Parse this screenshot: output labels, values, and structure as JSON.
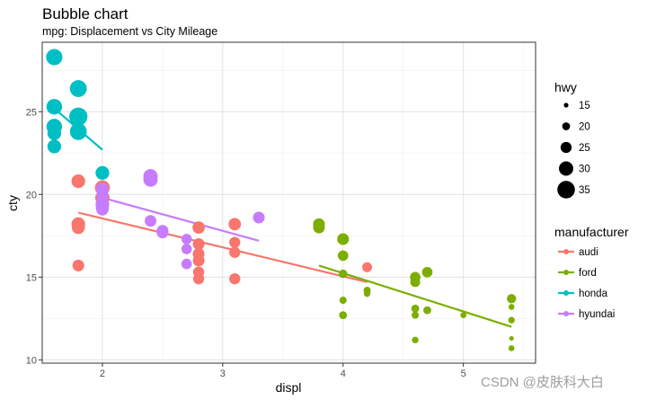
{
  "chart_data": {
    "type": "scatter",
    "title": "Bubble chart",
    "subtitle": "mpg: Displacement vs City Mileage",
    "xlabel": "displ",
    "ylabel": "cty",
    "xlim": [
      1.5,
      5.6
    ],
    "ylim": [
      9.8,
      29.2
    ],
    "x_ticks": [
      2,
      3,
      4,
      5
    ],
    "y_ticks": [
      10,
      15,
      20,
      25
    ],
    "grid": true,
    "legend_position": "right",
    "size_legend": {
      "title": "hwy",
      "values": [
        15,
        20,
        25,
        30,
        35
      ]
    },
    "color_legend": {
      "title": "manufacturer",
      "entries": [
        {
          "name": "audi",
          "color": "#F8766D"
        },
        {
          "name": "ford",
          "color": "#7CAE00"
        },
        {
          "name": "honda",
          "color": "#00BFC4"
        },
        {
          "name": "hyundai",
          "color": "#C77CFF"
        }
      ]
    },
    "series": [
      {
        "name": "audi",
        "color": "#F8766D",
        "points": [
          {
            "x": 1.8,
            "y": 18.2,
            "hwy": 29
          },
          {
            "x": 1.8,
            "y": 20.8,
            "hwy": 29
          },
          {
            "x": 1.8,
            "y": 18.0,
            "hwy": 28
          },
          {
            "x": 1.8,
            "y": 15.7,
            "hwy": 26
          },
          {
            "x": 2.0,
            "y": 20.4,
            "hwy": 31
          },
          {
            "x": 2.0,
            "y": 19.8,
            "hwy": 30
          },
          {
            "x": 2.8,
            "y": 16.0,
            "hwy": 26
          },
          {
            "x": 2.8,
            "y": 17.0,
            "hwy": 26
          },
          {
            "x": 2.8,
            "y": 15.3,
            "hwy": 25
          },
          {
            "x": 2.8,
            "y": 14.9,
            "hwy": 25
          },
          {
            "x": 2.8,
            "y": 18.0,
            "hwy": 27
          },
          {
            "x": 2.8,
            "y": 16.4,
            "hwy": 26
          },
          {
            "x": 3.1,
            "y": 18.2,
            "hwy": 27
          },
          {
            "x": 3.1,
            "y": 14.9,
            "hwy": 25
          },
          {
            "x": 3.1,
            "y": 16.5,
            "hwy": 25
          },
          {
            "x": 3.1,
            "y": 17.1,
            "hwy": 25
          },
          {
            "x": 4.2,
            "y": 15.6,
            "hwy": 23
          }
        ],
        "trend": {
          "x": [
            1.8,
            4.2
          ],
          "y": [
            18.9,
            14.7
          ]
        }
      },
      {
        "name": "ford",
        "color": "#7CAE00",
        "points": [
          {
            "x": 3.8,
            "y": 18.2,
            "hwy": 26
          },
          {
            "x": 3.8,
            "y": 18.0,
            "hwy": 26
          },
          {
            "x": 4.0,
            "y": 16.3,
            "hwy": 24
          },
          {
            "x": 4.0,
            "y": 15.2,
            "hwy": 21
          },
          {
            "x": 4.0,
            "y": 13.6,
            "hwy": 19
          },
          {
            "x": 4.0,
            "y": 12.7,
            "hwy": 20
          },
          {
            "x": 4.0,
            "y": 17.3,
            "hwy": 26
          },
          {
            "x": 4.2,
            "y": 14.2,
            "hwy": 19
          },
          {
            "x": 4.2,
            "y": 14.0,
            "hwy": 18
          },
          {
            "x": 4.6,
            "y": 14.7,
            "hwy": 23
          },
          {
            "x": 4.6,
            "y": 15.0,
            "hwy": 24
          },
          {
            "x": 4.6,
            "y": 13.1,
            "hwy": 20
          },
          {
            "x": 4.6,
            "y": 12.7,
            "hwy": 19
          },
          {
            "x": 4.6,
            "y": 11.2,
            "hwy": 18
          },
          {
            "x": 4.7,
            "y": 15.3,
            "hwy": 24
          },
          {
            "x": 4.7,
            "y": 13.0,
            "hwy": 20
          },
          {
            "x": 5.0,
            "y": 12.7,
            "hwy": 17
          },
          {
            "x": 5.4,
            "y": 13.7,
            "hwy": 22
          },
          {
            "x": 5.4,
            "y": 13.2,
            "hwy": 17
          },
          {
            "x": 5.4,
            "y": 12.4,
            "hwy": 18
          },
          {
            "x": 5.4,
            "y": 11.3,
            "hwy": 15
          },
          {
            "x": 5.4,
            "y": 10.7,
            "hwy": 17
          }
        ],
        "trend": {
          "x": [
            3.8,
            5.4
          ],
          "y": [
            15.7,
            12.0
          ]
        }
      },
      {
        "name": "honda",
        "color": "#00BFC4",
        "points": [
          {
            "x": 1.6,
            "y": 28.3,
            "hwy": 33
          },
          {
            "x": 1.6,
            "y": 25.3,
            "hwy": 32
          },
          {
            "x": 1.6,
            "y": 24.1,
            "hwy": 32
          },
          {
            "x": 1.6,
            "y": 23.7,
            "hwy": 29
          },
          {
            "x": 1.6,
            "y": 22.9,
            "hwy": 29
          },
          {
            "x": 1.8,
            "y": 26.4,
            "hwy": 34
          },
          {
            "x": 1.8,
            "y": 24.7,
            "hwy": 36
          },
          {
            "x": 1.8,
            "y": 23.8,
            "hwy": 34
          },
          {
            "x": 2.0,
            "y": 21.3,
            "hwy": 29
          }
        ],
        "trend": {
          "x": [
            1.6,
            2.0
          ],
          "y": [
            25.2,
            22.7
          ]
        }
      },
      {
        "name": "hyundai",
        "color": "#C77CFF",
        "points": [
          {
            "x": 2.0,
            "y": 19.9,
            "hwy": 26
          },
          {
            "x": 2.0,
            "y": 19.4,
            "hwy": 29
          },
          {
            "x": 2.0,
            "y": 19.2,
            "hwy": 28
          },
          {
            "x": 2.0,
            "y": 19.1,
            "hwy": 27
          },
          {
            "x": 2.0,
            "y": 20.3,
            "hwy": 28
          },
          {
            "x": 2.4,
            "y": 21.1,
            "hwy": 30
          },
          {
            "x": 2.4,
            "y": 20.9,
            "hwy": 30
          },
          {
            "x": 2.4,
            "y": 18.4,
            "hwy": 26
          },
          {
            "x": 2.5,
            "y": 17.7,
            "hwy": 26
          },
          {
            "x": 2.5,
            "y": 17.8,
            "hwy": 26
          },
          {
            "x": 2.7,
            "y": 16.7,
            "hwy": 24
          },
          {
            "x": 2.7,
            "y": 15.8,
            "hwy": 24
          },
          {
            "x": 2.7,
            "y": 17.3,
            "hwy": 24
          },
          {
            "x": 3.3,
            "y": 18.6,
            "hwy": 26
          }
        ],
        "trend": {
          "x": [
            2.0,
            3.3
          ],
          "y": [
            19.8,
            17.2
          ]
        }
      }
    ]
  },
  "watermark": "CSDN @皮肤科大白"
}
